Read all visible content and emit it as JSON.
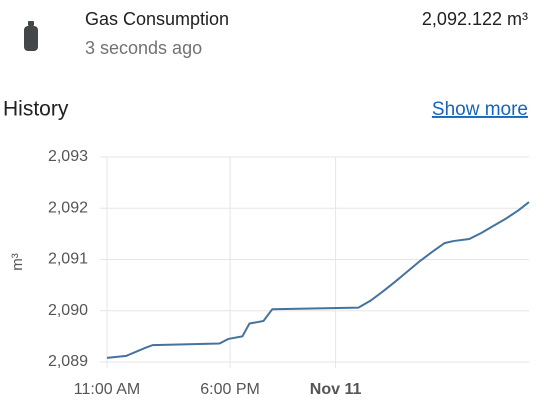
{
  "entity": {
    "name": "Gas Consumption",
    "last_changed": "3 seconds ago",
    "state": "2,092.122 m³"
  },
  "history": {
    "title": "History",
    "link": "Show more"
  },
  "chart_data": {
    "type": "line",
    "y_label": "m³",
    "color": "#44739e",
    "x": [
      0,
      1.1,
      2.2,
      2.6,
      6.4,
      6.9,
      7.7,
      8.1,
      8.9,
      9.4,
      14.3,
      15,
      15.7,
      16.4,
      17.1,
      17.8,
      18.5,
      19.2,
      19.7,
      20.6,
      21.3,
      22,
      22.7,
      23.4,
      24
    ],
    "values": [
      2089.08,
      2089.12,
      2089.28,
      2089.33,
      2089.36,
      2089.45,
      2089.5,
      2089.75,
      2089.8,
      2090.03,
      2090.06,
      2090.2,
      2090.38,
      2090.57,
      2090.77,
      2090.97,
      2091.15,
      2091.32,
      2091.36,
      2091.4,
      2091.52,
      2091.66,
      2091.8,
      2091.96,
      2092.12
    ],
    "xlim": [
      0,
      24
    ],
    "xticks": [
      {
        "value": 0,
        "label": "11:00 AM"
      },
      {
        "value": 7,
        "label": "6:00 PM"
      },
      {
        "value": 13,
        "label": "Nov 11"
      }
    ],
    "ylim": [
      2089,
      2093
    ],
    "yticks": [
      {
        "value": 2089,
        "label": "2,089"
      },
      {
        "value": 2090,
        "label": "2,090"
      },
      {
        "value": 2091,
        "label": "2,091"
      },
      {
        "value": 2092,
        "label": "2,092"
      },
      {
        "value": 2093,
        "label": "2,093"
      }
    ],
    "grid": true
  }
}
